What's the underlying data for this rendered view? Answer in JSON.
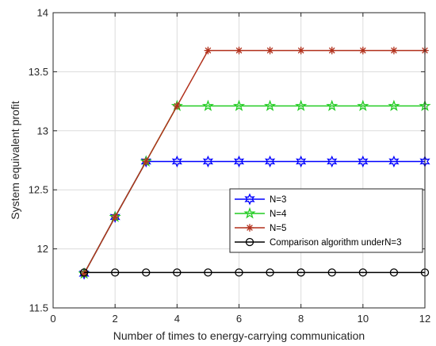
{
  "chart_data": {
    "type": "line",
    "title": "",
    "xlabel": "Number of times to energy-carrying communication",
    "ylabel": "System equivalent profit",
    "xlim": [
      0,
      12
    ],
    "ylim": [
      11.5,
      14
    ],
    "xticks": [
      0,
      2,
      4,
      6,
      8,
      10,
      12
    ],
    "yticks": [
      11.5,
      12,
      12.5,
      13,
      13.5,
      14
    ],
    "xtick_labels": [
      "0",
      "2",
      "4",
      "6",
      "8",
      "10",
      "12"
    ],
    "ytick_labels": [
      "11.5",
      "12",
      "12.5",
      "13",
      "13.5",
      "14"
    ],
    "grid": true,
    "legend_position": "lower-right",
    "x": [
      1,
      2,
      3,
      4,
      5,
      6,
      7,
      8,
      9,
      10,
      11,
      12
    ],
    "series": [
      {
        "name": "N=3",
        "color": "#0000ff",
        "marker": "hexagram",
        "values": [
          11.79,
          12.27,
          12.74,
          12.74,
          12.74,
          12.74,
          12.74,
          12.74,
          12.74,
          12.74,
          12.74,
          12.74
        ]
      },
      {
        "name": "N=4",
        "color": "#22cc22",
        "marker": "pentagram",
        "values": [
          11.79,
          12.27,
          12.74,
          13.21,
          13.21,
          13.21,
          13.21,
          13.21,
          13.21,
          13.21,
          13.21,
          13.21
        ]
      },
      {
        "name": "N=5",
        "color": "#b2311c",
        "marker": "asterisk",
        "values": [
          11.79,
          12.27,
          12.74,
          13.21,
          13.68,
          13.68,
          13.68,
          13.68,
          13.68,
          13.68,
          13.68,
          13.68
        ]
      },
      {
        "name": "Comparison algorithm underN=3",
        "color": "#000000",
        "marker": "circle",
        "values": [
          11.8,
          11.8,
          11.8,
          11.8,
          11.8,
          11.8,
          11.8,
          11.8,
          11.8,
          11.8,
          11.8,
          11.8
        ]
      }
    ]
  }
}
